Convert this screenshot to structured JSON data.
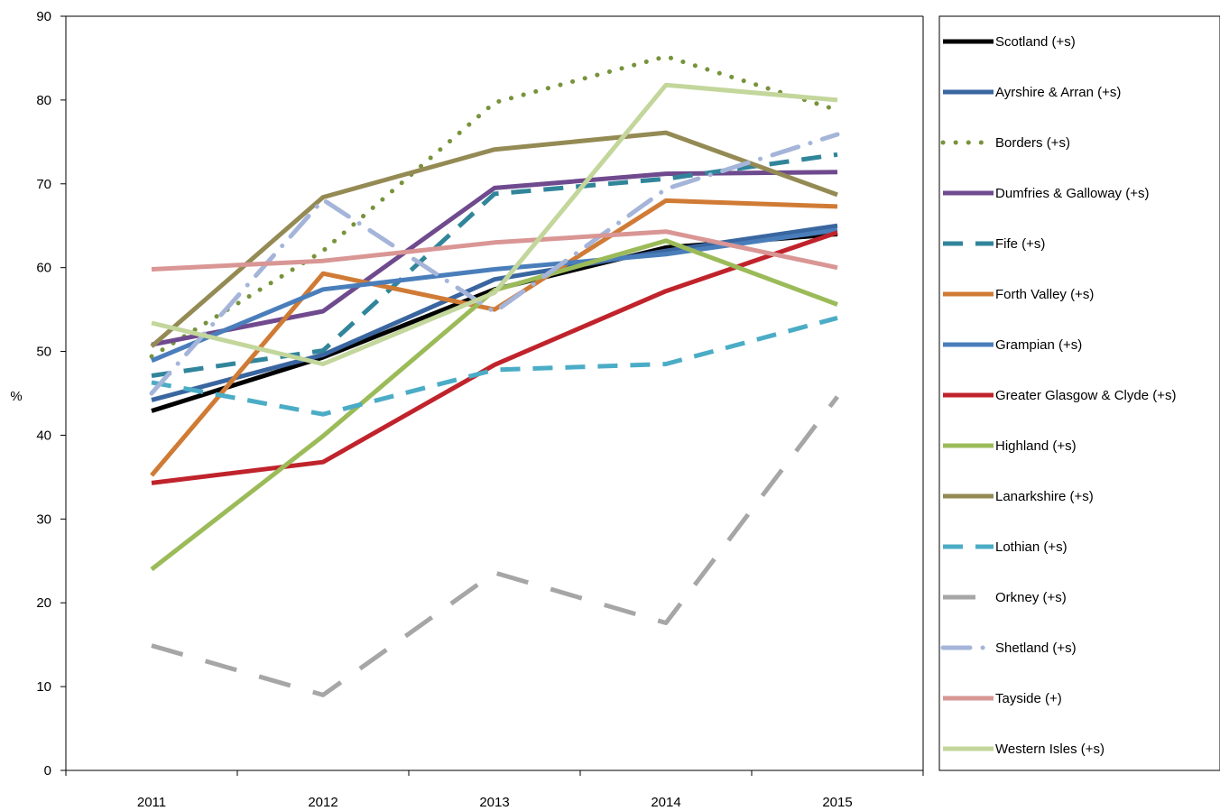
{
  "chart_data": {
    "type": "line",
    "ylabel": "%",
    "xlabel": "",
    "ylim": [
      0,
      90
    ],
    "yticks": [
      "0",
      "10",
      "20",
      "30",
      "40",
      "50",
      "60",
      "70",
      "80",
      "90"
    ],
    "categories": [
      "2011",
      "2012",
      "2013",
      "2014",
      "2015"
    ],
    "legend_position": "right",
    "grid": false,
    "series": [
      {
        "name": "Scotland (+s)",
        "values": [
          42.9,
          49.3,
          57.4,
          62.4,
          64.0
        ],
        "color": "#000000",
        "dash": "solid"
      },
      {
        "name": "Ayrshire & Arran (+s)",
        "values": [
          44.2,
          49.6,
          58.6,
          62.0,
          65.0
        ],
        "color": "#3a66a0",
        "dash": "solid"
      },
      {
        "name": "Borders (+s)",
        "values": [
          49.4,
          62.0,
          79.7,
          85.2,
          78.8
        ],
        "color": "#77933c",
        "dash": "dotted"
      },
      {
        "name": "Dumfries & Galloway (+s)",
        "values": [
          50.8,
          54.8,
          69.5,
          71.2,
          71.4
        ],
        "color": "#6f4a8e",
        "dash": "solid"
      },
      {
        "name": "Fife (+s)",
        "values": [
          47.1,
          50.1,
          68.8,
          70.6,
          73.5
        ],
        "color": "#31859b",
        "dash": "dash"
      },
      {
        "name": "Forth Valley (+s)",
        "values": [
          35.2,
          59.3,
          55.0,
          68.0,
          67.3
        ],
        "color": "#d07b35",
        "dash": "solid"
      },
      {
        "name": "Grampian (+s)",
        "values": [
          48.9,
          57.4,
          59.8,
          61.6,
          64.5
        ],
        "color": "#4a7ebb",
        "dash": "solid"
      },
      {
        "name": "Greater Glasgow & Clyde (+s)",
        "values": [
          34.3,
          36.8,
          48.4,
          57.2,
          64.2
        ],
        "color": "#c0232b",
        "dash": "solid"
      },
      {
        "name": "Highland (+s)",
        "values": [
          24.0,
          39.9,
          57.3,
          63.2,
          55.6
        ],
        "color": "#9bbb59",
        "dash": "solid"
      },
      {
        "name": "Lanarkshire (+s)",
        "values": [
          50.6,
          68.4,
          74.1,
          76.1,
          68.7
        ],
        "color": "#948a54",
        "dash": "solid"
      },
      {
        "name": "Lothian (+s)",
        "values": [
          46.3,
          42.5,
          47.8,
          48.5,
          54.0
        ],
        "color": "#4bacc6",
        "dash": "dash"
      },
      {
        "name": "Orkney (+s)",
        "values": [
          14.9,
          9.0,
          23.6,
          17.6,
          44.6
        ],
        "color": "#a6a6a6",
        "dash": "longdash"
      },
      {
        "name": "Shetland (+s)",
        "values": [
          45.0,
          68.1,
          54.7,
          69.4,
          75.9
        ],
        "color": "#a5b5d9",
        "dash": "dashdot"
      },
      {
        "name": "Tayside (+)",
        "values": [
          59.8,
          60.8,
          63.0,
          64.3,
          60.0
        ],
        "color": "#d99694",
        "dash": "solid"
      },
      {
        "name": "Western Isles (+s)",
        "values": [
          53.4,
          48.5,
          57.0,
          81.8,
          80.0
        ],
        "color": "#c3d69b",
        "dash": "solid"
      }
    ]
  }
}
